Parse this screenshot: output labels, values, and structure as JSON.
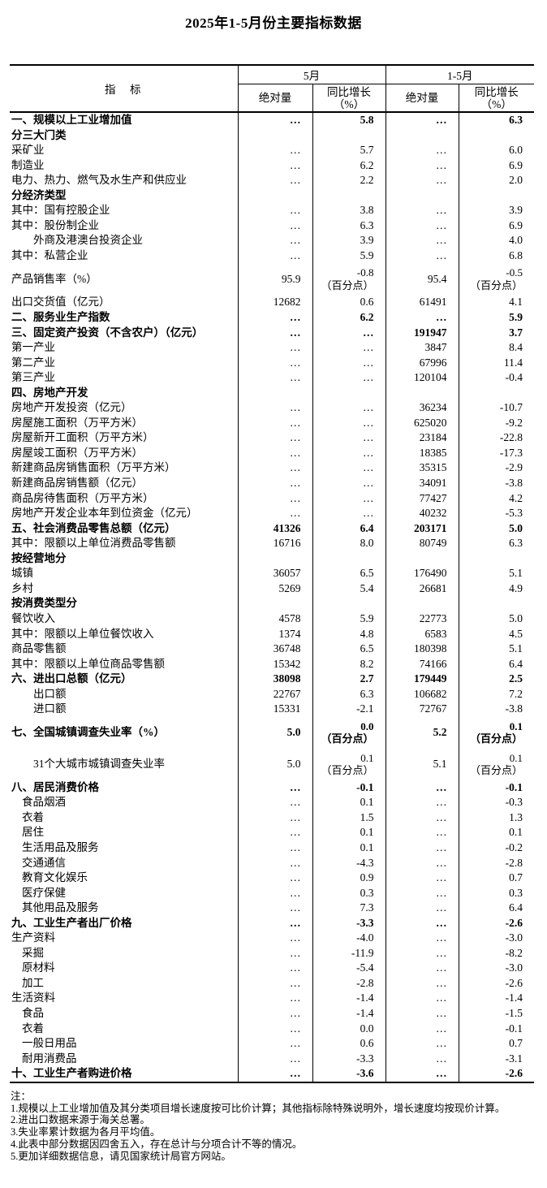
{
  "title": "2025年1-5月份主要指标数据",
  "table": {
    "header": {
      "indicator": "指　标",
      "may": "5月",
      "cum": "1-5月",
      "abs": "绝对量",
      "yoy": "同比增长\n（%）"
    },
    "rows": [
      {
        "label": "一、规模以上工业增加值",
        "indent": 0,
        "bold": true,
        "v": [
          "…",
          "5.8",
          "…",
          "6.3"
        ]
      },
      {
        "label": "分三大门类",
        "indent": 0,
        "bold": true,
        "v": [
          "",
          "",
          "",
          ""
        ]
      },
      {
        "label": "采矿业",
        "indent": 0,
        "bold": false,
        "v": [
          "…",
          "5.7",
          "…",
          "6.0"
        ]
      },
      {
        "label": "制造业",
        "indent": 0,
        "bold": false,
        "v": [
          "…",
          "6.2",
          "…",
          "6.9"
        ]
      },
      {
        "label": "电力、热力、燃气及水生产和供应业",
        "indent": 0,
        "bold": false,
        "v": [
          "…",
          "2.2",
          "…",
          "2.0"
        ]
      },
      {
        "label": "分经济类型",
        "indent": 0,
        "bold": true,
        "v": [
          "",
          "",
          "",
          ""
        ]
      },
      {
        "label": "其中：国有控股企业",
        "indent": 0,
        "bold": false,
        "v": [
          "…",
          "3.8",
          "…",
          "3.9"
        ]
      },
      {
        "label": "其中：股份制企业",
        "indent": 0,
        "bold": false,
        "v": [
          "…",
          "6.3",
          "…",
          "6.9"
        ]
      },
      {
        "label": "外商及港澳台投资企业",
        "indent": 2,
        "bold": false,
        "v": [
          "…",
          "3.9",
          "…",
          "4.0"
        ]
      },
      {
        "label": "其中：私营企业",
        "indent": 0,
        "bold": false,
        "v": [
          "…",
          "5.9",
          "…",
          "6.8"
        ]
      },
      {
        "label": "产品销售率（%）",
        "indent": 0,
        "bold": false,
        "v": [
          "95.9",
          "-0.8\n（百分点）",
          "95.4",
          "-0.5\n（百分点）"
        ]
      },
      {
        "label": "出口交货值（亿元）",
        "indent": 0,
        "bold": false,
        "v": [
          "12682",
          "0.6",
          "61491",
          "4.1"
        ]
      },
      {
        "label": "二、服务业生产指数",
        "indent": 0,
        "bold": true,
        "v": [
          "…",
          "6.2",
          "…",
          "5.9"
        ]
      },
      {
        "label": "三、固定资产投资（不含农户）（亿元）",
        "indent": 0,
        "bold": true,
        "v": [
          "…",
          "…",
          "191947",
          "3.7"
        ]
      },
      {
        "label": "第一产业",
        "indent": 0,
        "bold": false,
        "v": [
          "…",
          "…",
          "3847",
          "8.4"
        ]
      },
      {
        "label": "第二产业",
        "indent": 0,
        "bold": false,
        "v": [
          "…",
          "…",
          "67996",
          "11.4"
        ]
      },
      {
        "label": "第三产业",
        "indent": 0,
        "bold": false,
        "v": [
          "…",
          "…",
          "120104",
          "-0.4"
        ]
      },
      {
        "label": "四、房地产开发",
        "indent": 0,
        "bold": true,
        "v": [
          "",
          "",
          "",
          ""
        ]
      },
      {
        "label": "房地产开发投资（亿元）",
        "indent": 0,
        "bold": false,
        "v": [
          "…",
          "…",
          "36234",
          "-10.7"
        ]
      },
      {
        "label": "房屋施工面积（万平方米）",
        "indent": 0,
        "bold": false,
        "v": [
          "…",
          "…",
          "625020",
          "-9.2"
        ]
      },
      {
        "label": "房屋新开工面积（万平方米）",
        "indent": 0,
        "bold": false,
        "v": [
          "…",
          "…",
          "23184",
          "-22.8"
        ]
      },
      {
        "label": "房屋竣工面积（万平方米）",
        "indent": 0,
        "bold": false,
        "v": [
          "…",
          "…",
          "18385",
          "-17.3"
        ]
      },
      {
        "label": "新建商品房销售面积（万平方米）",
        "indent": 0,
        "bold": false,
        "v": [
          "…",
          "…",
          "35315",
          "-2.9"
        ]
      },
      {
        "label": "新建商品房销售额（亿元）",
        "indent": 0,
        "bold": false,
        "v": [
          "…",
          "…",
          "34091",
          "-3.8"
        ]
      },
      {
        "label": "商品房待售面积（万平方米）",
        "indent": 0,
        "bold": false,
        "v": [
          "…",
          "…",
          "77427",
          "4.2"
        ]
      },
      {
        "label": "房地产开发企业本年到位资金（亿元）",
        "indent": 0,
        "bold": false,
        "v": [
          "…",
          "…",
          "40232",
          "-5.3"
        ]
      },
      {
        "label": "五、社会消费品零售总额（亿元）",
        "indent": 0,
        "bold": true,
        "v": [
          "41326",
          "6.4",
          "203171",
          "5.0"
        ]
      },
      {
        "label": "其中：限额以上单位消费品零售额",
        "indent": 0,
        "bold": false,
        "v": [
          "16716",
          "8.0",
          "80749",
          "6.3"
        ]
      },
      {
        "label": "按经营地分",
        "indent": 0,
        "bold": true,
        "v": [
          "",
          "",
          "",
          ""
        ]
      },
      {
        "label": "城镇",
        "indent": 0,
        "bold": false,
        "v": [
          "36057",
          "6.5",
          "176490",
          "5.1"
        ]
      },
      {
        "label": "乡村",
        "indent": 0,
        "bold": false,
        "v": [
          "5269",
          "5.4",
          "26681",
          "4.9"
        ]
      },
      {
        "label": "按消费类型分",
        "indent": 0,
        "bold": true,
        "v": [
          "",
          "",
          "",
          ""
        ]
      },
      {
        "label": "餐饮收入",
        "indent": 0,
        "bold": false,
        "v": [
          "4578",
          "5.9",
          "22773",
          "5.0"
        ]
      },
      {
        "label": "其中：限额以上单位餐饮收入",
        "indent": 0,
        "bold": false,
        "v": [
          "1374",
          "4.8",
          "6583",
          "4.5"
        ]
      },
      {
        "label": "商品零售额",
        "indent": 0,
        "bold": false,
        "v": [
          "36748",
          "6.5",
          "180398",
          "5.1"
        ]
      },
      {
        "label": "其中：限额以上单位商品零售额",
        "indent": 0,
        "bold": false,
        "v": [
          "15342",
          "8.2",
          "74166",
          "6.4"
        ]
      },
      {
        "label": "六、进出口总额（亿元）",
        "indent": 0,
        "bold": true,
        "v": [
          "38098",
          "2.7",
          "179449",
          "2.5"
        ]
      },
      {
        "label": "出口额",
        "indent": 2,
        "bold": false,
        "v": [
          "22767",
          "6.3",
          "106682",
          "7.2"
        ]
      },
      {
        "label": "进口额",
        "indent": 2,
        "bold": false,
        "v": [
          "15331",
          "-2.1",
          "72767",
          "-3.8"
        ]
      },
      {
        "label": "七、全国城镇调查失业率（%）",
        "indent": 0,
        "bold": true,
        "v": [
          "5.0",
          "0.0\n（百分点）",
          "5.2",
          "0.1\n（百分点）"
        ]
      },
      {
        "label": "31个大城市城镇调查失业率",
        "indent": 2,
        "bold": false,
        "v": [
          "5.0",
          "0.1\n（百分点）",
          "5.1",
          "0.1\n（百分点）"
        ]
      },
      {
        "label": "八、居民消费价格",
        "indent": 0,
        "bold": true,
        "v": [
          "…",
          "-0.1",
          "…",
          "-0.1"
        ]
      },
      {
        "label": "食品烟酒",
        "indent": 1,
        "bold": false,
        "v": [
          "…",
          "0.1",
          "…",
          "-0.3"
        ]
      },
      {
        "label": "衣着",
        "indent": 1,
        "bold": false,
        "v": [
          "…",
          "1.5",
          "…",
          "1.3"
        ]
      },
      {
        "label": "居住",
        "indent": 1,
        "bold": false,
        "v": [
          "…",
          "0.1",
          "…",
          "0.1"
        ]
      },
      {
        "label": "生活用品及服务",
        "indent": 1,
        "bold": false,
        "v": [
          "…",
          "0.1",
          "…",
          "-0.2"
        ]
      },
      {
        "label": "交通通信",
        "indent": 1,
        "bold": false,
        "v": [
          "…",
          "-4.3",
          "…",
          "-2.8"
        ]
      },
      {
        "label": "教育文化娱乐",
        "indent": 1,
        "bold": false,
        "v": [
          "…",
          "0.9",
          "…",
          "0.7"
        ]
      },
      {
        "label": "医疗保健",
        "indent": 1,
        "bold": false,
        "v": [
          "…",
          "0.3",
          "…",
          "0.3"
        ]
      },
      {
        "label": "其他用品及服务",
        "indent": 1,
        "bold": false,
        "v": [
          "…",
          "7.3",
          "…",
          "6.4"
        ]
      },
      {
        "label": "九、工业生产者出厂价格",
        "indent": 0,
        "bold": true,
        "v": [
          "…",
          "-3.3",
          "…",
          "-2.6"
        ]
      },
      {
        "label": "生产资料",
        "indent": 0,
        "bold": false,
        "v": [
          "…",
          "-4.0",
          "…",
          "-3.0"
        ]
      },
      {
        "label": "采掘",
        "indent": 1,
        "bold": false,
        "v": [
          "…",
          "-11.9",
          "…",
          "-8.2"
        ]
      },
      {
        "label": "原材料",
        "indent": 1,
        "bold": false,
        "v": [
          "…",
          "-5.4",
          "…",
          "-3.0"
        ]
      },
      {
        "label": "加工",
        "indent": 1,
        "bold": false,
        "v": [
          "…",
          "-2.8",
          "…",
          "-2.6"
        ]
      },
      {
        "label": "生活资料",
        "indent": 0,
        "bold": false,
        "v": [
          "…",
          "-1.4",
          "…",
          "-1.4"
        ]
      },
      {
        "label": "食品",
        "indent": 1,
        "bold": false,
        "v": [
          "…",
          "-1.4",
          "…",
          "-1.5"
        ]
      },
      {
        "label": "衣着",
        "indent": 1,
        "bold": false,
        "v": [
          "…",
          "0.0",
          "…",
          "-0.1"
        ]
      },
      {
        "label": "一般日用品",
        "indent": 1,
        "bold": false,
        "v": [
          "…",
          "0.6",
          "…",
          "0.7"
        ]
      },
      {
        "label": "耐用消费品",
        "indent": 1,
        "bold": false,
        "v": [
          "…",
          "-3.3",
          "…",
          "-3.1"
        ]
      },
      {
        "label": "十、工业生产者购进价格",
        "indent": 0,
        "bold": true,
        "v": [
          "…",
          "-3.6",
          "…",
          "-2.6"
        ]
      }
    ]
  },
  "notes": {
    "heading": "注：",
    "items": [
      "1.规模以上工业增加值及其分类项目增长速度按可比价计算；其他指标除特殊说明外，增长速度均按现价计算。",
      "2.进出口数据来源于海关总署。",
      "3.失业率累计数据为各月平均值。",
      "4.此表中部分数据因四舍五入，存在总计与分项合计不等的情况。",
      "5.更加详细数据信息，请见国家统计局官方网站。"
    ]
  }
}
